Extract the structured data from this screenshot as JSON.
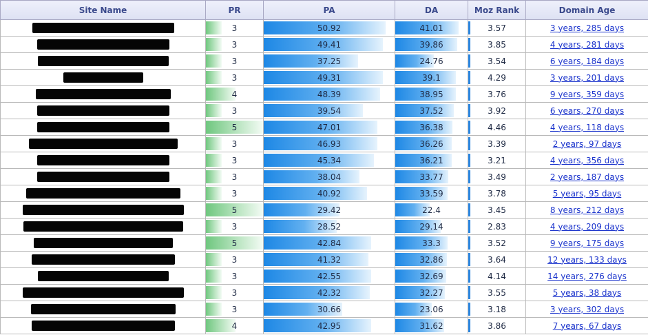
{
  "columns": [
    "Site Name",
    "PR",
    "PA",
    "DA",
    "Moz Rank",
    "Domain Age"
  ],
  "rows": [
    {
      "site": "",
      "pr": "3",
      "pa": "50.92",
      "da": "41.01",
      "moz": "3.57",
      "age": "3 years, 285 days",
      "pr_pct": 0.28,
      "pa_pct": 0.93,
      "da_pct": 0.88
    },
    {
      "site": "",
      "pr": "3",
      "pa": "49.41",
      "da": "39.86",
      "moz": "3.85",
      "age": "4 years, 281 days",
      "pr_pct": 0.28,
      "pa_pct": 0.91,
      "da_pct": 0.86
    },
    {
      "site": "",
      "pr": "3",
      "pa": "37.25",
      "da": "24.76",
      "moz": "3.54",
      "age": "6 years, 184 days",
      "pr_pct": 0.28,
      "pa_pct": 0.72,
      "da_pct": 0.53
    },
    {
      "site": "",
      "pr": "3",
      "pa": "49.31",
      "da": "39.1",
      "moz": "4.29",
      "age": "3 years, 201 days",
      "pr_pct": 0.28,
      "pa_pct": 0.91,
      "da_pct": 0.84
    },
    {
      "site": "",
      "pr": "4",
      "pa": "48.39",
      "da": "38.95",
      "moz": "3.76",
      "age": "9 years, 359 days",
      "pr_pct": 0.52,
      "pa_pct": 0.89,
      "da_pct": 0.84
    },
    {
      "site": "",
      "pr": "3",
      "pa": "39.54",
      "da": "37.52",
      "moz": "3.92",
      "age": "6 years, 270 days",
      "pr_pct": 0.28,
      "pa_pct": 0.76,
      "da_pct": 0.81
    },
    {
      "site": "",
      "pr": "5",
      "pa": "47.01",
      "da": "36.38",
      "moz": "4.46",
      "age": "4 years, 118 days",
      "pr_pct": 1.0,
      "pa_pct": 0.87,
      "da_pct": 0.79
    },
    {
      "site": "",
      "pr": "3",
      "pa": "46.93",
      "da": "36.26",
      "moz": "3.39",
      "age": "2 years, 97 days",
      "pr_pct": 0.28,
      "pa_pct": 0.87,
      "da_pct": 0.78
    },
    {
      "site": "",
      "pr": "3",
      "pa": "45.34",
      "da": "36.21",
      "moz": "3.21",
      "age": "4 years, 356 days",
      "pr_pct": 0.28,
      "pa_pct": 0.84,
      "da_pct": 0.78
    },
    {
      "site": "",
      "pr": "3",
      "pa": "38.04",
      "da": "33.77",
      "moz": "3.49",
      "age": "2 years, 187 days",
      "pr_pct": 0.28,
      "pa_pct": 0.73,
      "da_pct": 0.73
    },
    {
      "site": "",
      "pr": "3",
      "pa": "40.92",
      "da": "33.59",
      "moz": "3.78",
      "age": "5 years, 95 days",
      "pr_pct": 0.28,
      "pa_pct": 0.79,
      "da_pct": 0.72
    },
    {
      "site": "",
      "pr": "5",
      "pa": "29.42",
      "da": "22.4",
      "moz": "3.45",
      "age": "8 years, 212 days",
      "pr_pct": 1.0,
      "pa_pct": 0.58,
      "da_pct": 0.48
    },
    {
      "site": "",
      "pr": "3",
      "pa": "28.52",
      "da": "29.14",
      "moz": "2.83",
      "age": "4 years, 209 days",
      "pr_pct": 0.28,
      "pa_pct": 0.56,
      "da_pct": 0.63
    },
    {
      "site": "",
      "pr": "5",
      "pa": "42.84",
      "da": "33.3",
      "moz": "3.52",
      "age": "9 years, 175 days",
      "pr_pct": 1.0,
      "pa_pct": 0.82,
      "da_pct": 0.72
    },
    {
      "site": "",
      "pr": "3",
      "pa": "41.32",
      "da": "32.86",
      "moz": "3.64",
      "age": "12 years, 133 days",
      "pr_pct": 0.28,
      "pa_pct": 0.8,
      "da_pct": 0.71
    },
    {
      "site": "",
      "pr": "3",
      "pa": "42.55",
      "da": "32.69",
      "moz": "4.14",
      "age": "14 years, 276 days",
      "pr_pct": 0.28,
      "pa_pct": 0.82,
      "da_pct": 0.7
    },
    {
      "site": "",
      "pr": "3",
      "pa": "42.32",
      "da": "32.27",
      "moz": "3.55",
      "age": "5 years, 38 days",
      "pr_pct": 0.28,
      "pa_pct": 0.81,
      "da_pct": 0.69
    },
    {
      "site": "",
      "pr": "3",
      "pa": "30.66",
      "da": "23.06",
      "moz": "3.18",
      "age": "3 years, 302 days",
      "pr_pct": 0.28,
      "pa_pct": 0.6,
      "da_pct": 0.5
    },
    {
      "site": "",
      "pr": "4",
      "pa": "42.95",
      "da": "31.62",
      "moz": "3.86",
      "age": "7 years, 67 days",
      "pr_pct": 0.52,
      "pa_pct": 0.82,
      "da_pct": 0.68
    }
  ]
}
